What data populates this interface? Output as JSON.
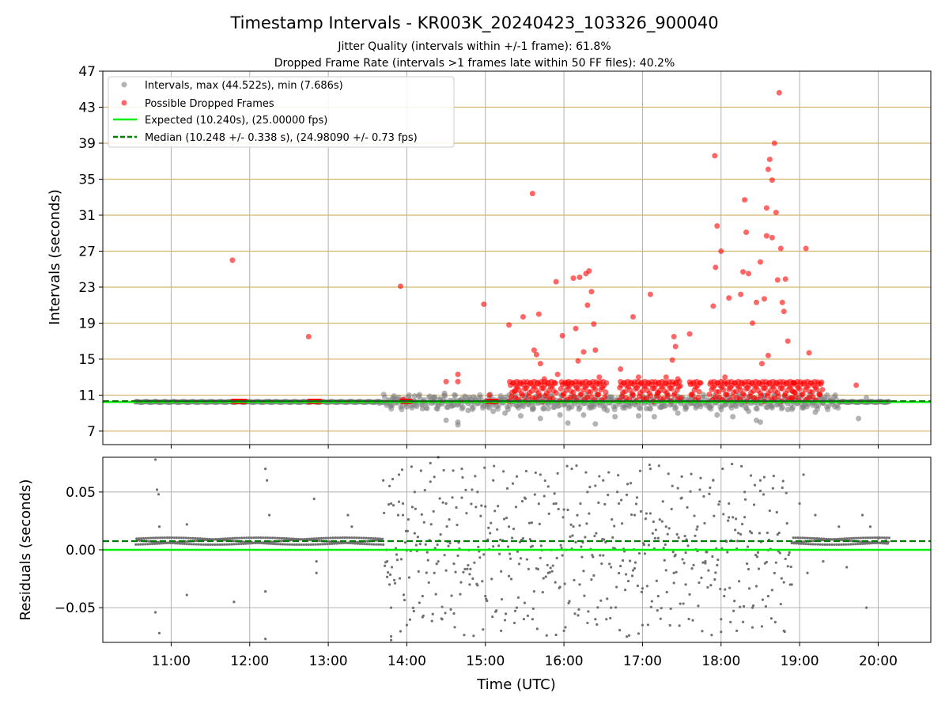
{
  "title": "Timestamp Intervals - KR003K_20240423_103326_900040",
  "subtitle_line1": "Jitter Quality (intervals within +/-1 frame): 61.8%",
  "subtitle_line2": "Dropped Frame Rate (intervals >1 frames late within 50 FF files): 40.2%",
  "colors": {
    "intervals": "#808080",
    "dropped": "#ff0000",
    "expected": "#00ee00",
    "median": "#007a00",
    "grid": "#b0b0b0",
    "hgrid": "#d4b56a"
  },
  "chart_data": [
    {
      "type": "scatter",
      "ylabel": "Intervals (seconds)",
      "xlim": [
        10.13,
        20.67
      ],
      "ylim": [
        5.5,
        47
      ],
      "yticks": [
        7,
        11,
        15,
        19,
        23,
        27,
        31,
        35,
        39,
        43,
        47
      ],
      "grid": true,
      "legend_position": "top-left",
      "legend": [
        {
          "label": "Intervals, max (44.522s), min (7.686s)",
          "marker": "gray-dot"
        },
        {
          "label": "Possible Dropped Frames",
          "marker": "red-dot"
        },
        {
          "label": "Expected (10.240s), (25.00000 fps)",
          "marker": "solid-green-line"
        },
        {
          "label": "Median (10.248 +/- 0.338 s), (24.98090 +/- 0.73 fps)",
          "marker": "dashed-green-line"
        }
      ],
      "expected": 10.24,
      "median": 10.248,
      "series": [
        {
          "name": "Intervals, max (44.522s), min (7.686s)",
          "points": [
            [
              10.55,
              10.24
            ],
            [
              10.8,
              10.26
            ],
            [
              11.2,
              10.2
            ],
            [
              11.5,
              10.25
            ],
            [
              12.25,
              10.3
            ],
            [
              12.6,
              10.25
            ],
            [
              13.3,
              10.3
            ],
            [
              13.65,
              10.1
            ],
            [
              13.8,
              9.9
            ],
            [
              13.82,
              10.7
            ],
            [
              14.0,
              9.7
            ],
            [
              14.1,
              10.9
            ],
            [
              14.2,
              9.5
            ],
            [
              14.35,
              10.8
            ],
            [
              14.4,
              9.8
            ],
            [
              14.48,
              11.2
            ],
            [
              14.5,
              8.2
            ],
            [
              14.6,
              9.9
            ],
            [
              14.65,
              7.7
            ],
            [
              14.65,
              8.0
            ],
            [
              14.7,
              10.6
            ],
            [
              14.78,
              9.3
            ],
            [
              14.85,
              10.8
            ],
            [
              15.05,
              9.6
            ],
            [
              15.1,
              9.2
            ],
            [
              15.2,
              10.4
            ],
            [
              15.25,
              9.0
            ],
            [
              15.3,
              11.0
            ],
            [
              15.4,
              9.8
            ],
            [
              15.45,
              8.7
            ],
            [
              15.5,
              10.6
            ],
            [
              15.6,
              9.4
            ],
            [
              15.7,
              8.4
            ],
            [
              15.75,
              10.9
            ],
            [
              15.8,
              9.5
            ],
            [
              15.85,
              10.2
            ],
            [
              15.95,
              8.8
            ],
            [
              16.05,
              7.9
            ],
            [
              16.1,
              9.7
            ],
            [
              16.15,
              10.7
            ],
            [
              16.25,
              8.8
            ],
            [
              16.35,
              9.6
            ],
            [
              16.4,
              7.8
            ],
            [
              16.55,
              9.3
            ],
            [
              16.6,
              10.8
            ],
            [
              16.65,
              8.6
            ],
            [
              16.75,
              9.6
            ],
            [
              16.85,
              10.1
            ],
            [
              16.95,
              8.7
            ],
            [
              17.05,
              9.5
            ],
            [
              17.15,
              8.6
            ],
            [
              17.25,
              9.7
            ],
            [
              17.35,
              10.4
            ],
            [
              17.45,
              9.0
            ],
            [
              17.55,
              9.7
            ],
            [
              17.65,
              10.1
            ],
            [
              17.85,
              9.6
            ],
            [
              17.95,
              8.8
            ],
            [
              18.05,
              9.9
            ],
            [
              18.15,
              8.6
            ],
            [
              18.25,
              10.5
            ],
            [
              18.35,
              9.2
            ],
            [
              18.45,
              8.2
            ],
            [
              18.5,
              8.0
            ],
            [
              18.55,
              10.6
            ],
            [
              18.65,
              9.6
            ],
            [
              18.75,
              10.1
            ],
            [
              18.85,
              9.4
            ],
            [
              19.05,
              9.6
            ],
            [
              19.1,
              10.6
            ],
            [
              19.2,
              9.1
            ],
            [
              19.25,
              11.2
            ],
            [
              19.3,
              10.1
            ],
            [
              19.35,
              11.0
            ],
            [
              19.4,
              10.3
            ],
            [
              19.45,
              9.7
            ],
            [
              19.75,
              8.4
            ],
            [
              19.85,
              10.7
            ],
            [
              20.1,
              10.25
            ]
          ]
        },
        {
          "name": "Possible Dropped Frames",
          "points": [
            [
              11.78,
              26.0
            ],
            [
              12.75,
              17.5
            ],
            [
              13.92,
              23.1
            ],
            [
              13.95,
              10.5
            ],
            [
              14.5,
              12.5
            ],
            [
              14.65,
              12.5
            ],
            [
              14.65,
              13.3
            ],
            [
              14.98,
              21.1
            ],
            [
              15.05,
              11.0
            ],
            [
              15.3,
              18.8
            ],
            [
              15.38,
              11.5
            ],
            [
              15.48,
              19.7
            ],
            [
              15.6,
              33.4
            ],
            [
              15.62,
              16.0
            ],
            [
              15.65,
              15.5
            ],
            [
              15.68,
              20.0
            ],
            [
              15.7,
              14.5
            ],
            [
              15.75,
              12.8
            ],
            [
              15.9,
              23.6
            ],
            [
              15.92,
              13.3
            ],
            [
              15.98,
              17.6
            ],
            [
              16.05,
              12.3
            ],
            [
              16.12,
              24.0
            ],
            [
              16.15,
              18.4
            ],
            [
              16.18,
              14.8
            ],
            [
              16.2,
              24.1
            ],
            [
              16.25,
              15.8
            ],
            [
              16.28,
              24.5
            ],
            [
              16.3,
              21.0
            ],
            [
              16.32,
              24.8
            ],
            [
              16.35,
              22.5
            ],
            [
              16.38,
              18.9
            ],
            [
              16.4,
              16.0
            ],
            [
              16.45,
              13.0
            ],
            [
              16.72,
              13.9
            ],
            [
              16.88,
              19.7
            ],
            [
              16.95,
              13.0
            ],
            [
              17.1,
              22.2
            ],
            [
              17.2,
              11.3
            ],
            [
              17.3,
              13.0
            ],
            [
              17.38,
              14.9
            ],
            [
              17.4,
              17.5
            ],
            [
              17.42,
              16.4
            ],
            [
              17.45,
              12.8
            ],
            [
              17.6,
              17.8
            ],
            [
              17.9,
              20.9
            ],
            [
              17.92,
              37.6
            ],
            [
              17.93,
              25.2
            ],
            [
              17.95,
              29.8
            ],
            [
              18.0,
              27.0
            ],
            [
              18.05,
              13.0
            ],
            [
              18.1,
              21.8
            ],
            [
              18.25,
              22.2
            ],
            [
              18.28,
              24.7
            ],
            [
              18.3,
              32.7
            ],
            [
              18.32,
              29.1
            ],
            [
              18.35,
              24.5
            ],
            [
              18.4,
              19.0
            ],
            [
              18.45,
              21.3
            ],
            [
              18.5,
              25.8
            ],
            [
              18.52,
              14.5
            ],
            [
              18.55,
              21.7
            ],
            [
              18.58,
              28.7
            ],
            [
              18.6,
              36.1
            ],
            [
              18.62,
              37.2
            ],
            [
              18.65,
              34.9
            ],
            [
              18.68,
              39.0
            ],
            [
              18.7,
              31.3
            ],
            [
              18.72,
              23.8
            ],
            [
              18.74,
              44.6
            ],
            [
              18.76,
              27.3
            ],
            [
              18.78,
              21.3
            ],
            [
              18.8,
              20.3
            ],
            [
              18.82,
              23.9
            ],
            [
              18.65,
              28.5
            ],
            [
              18.58,
              31.8
            ],
            [
              18.6,
              15.4
            ],
            [
              18.85,
              17.0
            ],
            [
              19.08,
              27.3
            ],
            [
              19.12,
              15.7
            ],
            [
              19.72,
              12.1
            ]
          ]
        }
      ]
    },
    {
      "type": "scatter",
      "xlabel": "Time (UTC)",
      "ylabel": "Residuals (seconds)",
      "xlim": [
        10.13,
        20.67
      ],
      "ylim": [
        -0.08,
        0.08
      ],
      "xticks": [
        "11:00",
        "12:00",
        "13:00",
        "14:00",
        "15:00",
        "16:00",
        "17:00",
        "18:00",
        "19:00",
        "20:00"
      ],
      "yticks": [
        "0.05",
        "0.00",
        "−0.05"
      ],
      "ytick_values": [
        0.05,
        0.0,
        -0.05
      ],
      "grid": true,
      "expected": 0.0,
      "median": 0.0075,
      "series": [
        {
          "name": "Residuals",
          "points": [
            [
              10.8,
              0.078
            ],
            [
              10.82,
              0.052
            ],
            [
              10.84,
              0.048
            ],
            [
              10.85,
              0.02
            ],
            [
              10.8,
              -0.054
            ],
            [
              10.85,
              -0.072
            ],
            [
              11.2,
              -0.039
            ],
            [
              11.2,
              0.022
            ],
            [
              11.8,
              -0.045
            ],
            [
              12.2,
              0.07
            ],
            [
              12.22,
              0.06
            ],
            [
              12.25,
              0.03
            ],
            [
              12.2,
              -0.036
            ],
            [
              12.2,
              -0.077
            ],
            [
              12.82,
              0.044
            ],
            [
              12.85,
              -0.01
            ],
            [
              12.85,
              -0.02
            ],
            [
              13.25,
              0.03
            ],
            [
              13.3,
              0.02
            ],
            [
              13.7,
              0.06
            ],
            [
              13.8,
              0.04
            ],
            [
              13.9,
              0.065
            ],
            [
              13.95,
              0.03
            ],
            [
              13.75,
              -0.01
            ],
            [
              13.78,
              -0.03
            ],
            [
              13.8,
              -0.05
            ],
            [
              13.8,
              -0.078
            ],
            [
              14.0,
              -0.065
            ],
            [
              14.1,
              0.05
            ],
            [
              14.2,
              -0.04
            ],
            [
              14.3,
              0.075
            ],
            [
              14.35,
              -0.02
            ],
            [
              14.4,
              0.08
            ],
            [
              14.45,
              -0.06
            ],
            [
              14.5,
              0.04
            ],
            [
              14.6,
              -0.055
            ],
            [
              14.7,
              0.07
            ],
            [
              14.8,
              -0.03
            ],
            [
              14.9,
              0.05
            ],
            [
              15.0,
              -0.04
            ],
            [
              15.1,
              0.06
            ],
            [
              15.2,
              -0.07
            ],
            [
              15.3,
              0.02
            ],
            [
              15.4,
              -0.05
            ],
            [
              15.5,
              0.045
            ],
            [
              15.6,
              -0.06
            ],
            [
              15.7,
              0.065
            ],
            [
              15.8,
              -0.02
            ],
            [
              15.9,
              0.04
            ],
            [
              16.0,
              -0.07
            ],
            [
              16.1,
              0.07
            ],
            [
              16.2,
              -0.03
            ],
            [
              16.3,
              0.05
            ],
            [
              16.4,
              -0.06
            ],
            [
              16.5,
              0.06
            ],
            [
              16.6,
              -0.05
            ],
            [
              16.7,
              0.04
            ],
            [
              16.8,
              -0.075
            ],
            [
              16.9,
              0.03
            ],
            [
              17.0,
              -0.065
            ],
            [
              17.1,
              0.07
            ],
            [
              17.2,
              -0.04
            ],
            [
              17.3,
              0.02
            ],
            [
              17.4,
              -0.02
            ],
            [
              17.5,
              0.045
            ],
            [
              17.55,
              -0.03
            ],
            [
              17.7,
              0.02
            ],
            [
              17.8,
              -0.01
            ],
            [
              17.9,
              0.06
            ],
            [
              18.0,
              -0.06
            ],
            [
              18.1,
              0.04
            ],
            [
              18.2,
              -0.07
            ],
            [
              18.3,
              0.05
            ],
            [
              18.4,
              -0.05
            ],
            [
              18.5,
              0.06
            ],
            [
              18.6,
              -0.04
            ],
            [
              18.8,
              -0.07
            ],
            [
              18.9,
              -0.03
            ],
            [
              19.0,
              0.04
            ],
            [
              19.05,
              0.065
            ],
            [
              19.1,
              -0.02
            ],
            [
              19.2,
              0.03
            ],
            [
              19.3,
              -0.01
            ],
            [
              19.5,
              0.02
            ],
            [
              19.6,
              -0.015
            ],
            [
              19.8,
              0.03
            ],
            [
              19.85,
              -0.05
            ],
            [
              19.9,
              0.02
            ],
            [
              20.0,
              0.01
            ],
            [
              20.1,
              0.008
            ]
          ]
        }
      ]
    }
  ]
}
